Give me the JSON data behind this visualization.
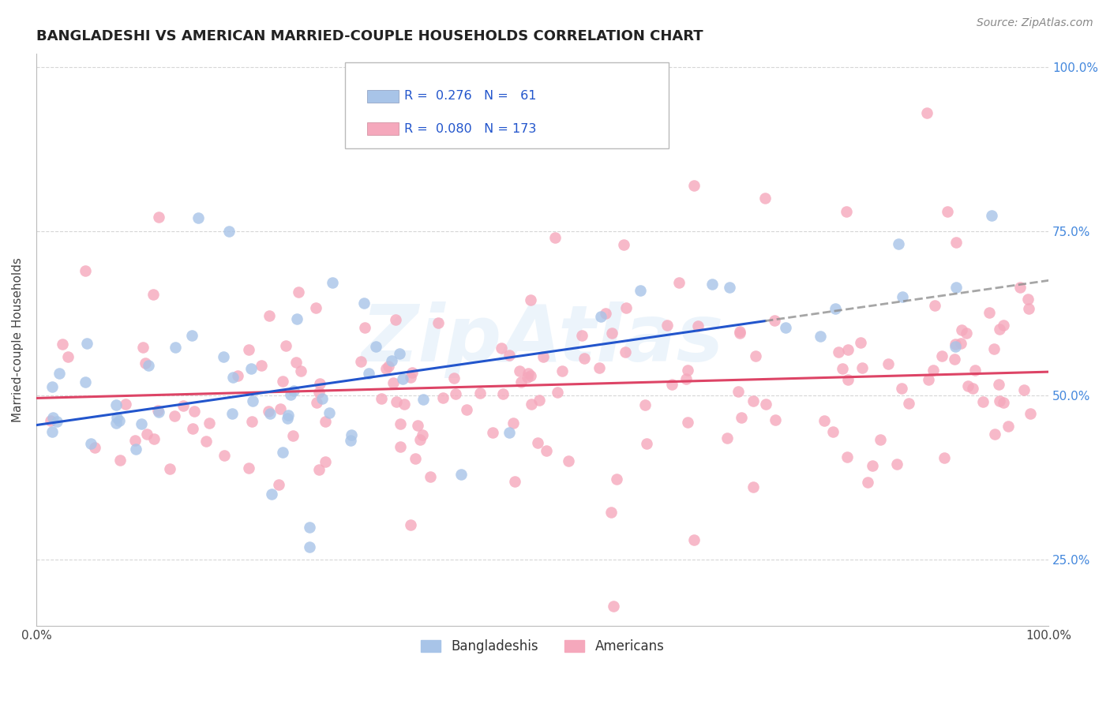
{
  "title": "BANGLADESHI VS AMERICAN MARRIED-COUPLE HOUSEHOLDS CORRELATION CHART",
  "source": "Source: ZipAtlas.com",
  "ylabel": "Married-couple Households",
  "r_bangladeshi": 0.276,
  "n_bangladeshi": 61,
  "r_american": 0.08,
  "n_american": 173,
  "bangladeshi_color": "#a8c4e8",
  "american_color": "#f5a8bc",
  "bangladeshi_line_color": "#2255cc",
  "american_line_color": "#dd4466",
  "watermark": "ZipAtlas",
  "xlim": [
    0.0,
    1.0
  ],
  "ylim": [
    0.15,
    1.02
  ],
  "right_tick_color": "#4488dd",
  "grid_color": "#cccccc",
  "title_color": "#222222",
  "source_color": "#888888"
}
